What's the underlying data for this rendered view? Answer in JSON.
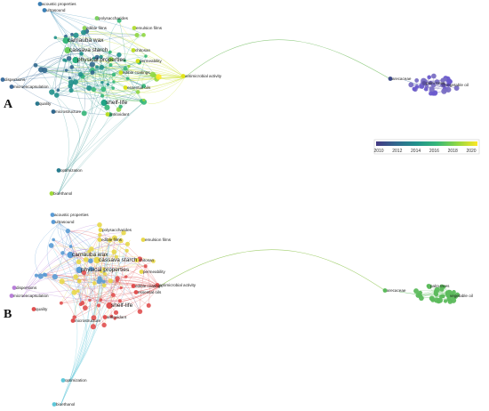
{
  "panels": [
    {
      "letter": "A",
      "mode": "year",
      "terms": [
        {
          "label": "acoustic properties",
          "big": false,
          "color": "#3b7fb5"
        },
        {
          "label": "ultrasound",
          "big": false,
          "color": "#3b7fb5"
        },
        {
          "label": "polysaccharides",
          "big": false,
          "color": "#7fd063"
        },
        {
          "label": "edible films",
          "big": false,
          "color": "#8fd45a"
        },
        {
          "label": "emulsion films",
          "big": false,
          "color": "#b5dd3b"
        },
        {
          "label": "carnauba wax",
          "big": true,
          "color": "#35b779"
        },
        {
          "label": "cassava starch",
          "big": true,
          "color": "#6ccd5a"
        },
        {
          "label": "chitosan",
          "big": false,
          "color": "#bedf26"
        },
        {
          "label": "physical properties",
          "big": true,
          "color": "#29af7f"
        },
        {
          "label": "permeability",
          "big": false,
          "color": "#d3e21b"
        },
        {
          "label": "edible coatings",
          "big": false,
          "color": "#c8e020"
        },
        {
          "label": "antimicrobial activity",
          "big": false,
          "color": "#e2e418"
        },
        {
          "label": "dispersions",
          "big": false,
          "color": "#3d6f9e"
        },
        {
          "label": "microencapsulation",
          "big": false,
          "color": "#3e6b9a"
        },
        {
          "label": "essential oils",
          "big": false,
          "color": "#dde318"
        },
        {
          "label": "shelf-life",
          "big": true,
          "color": "#20a486"
        },
        {
          "label": "quality",
          "big": false,
          "color": "#2a788e"
        },
        {
          "label": "antioxidant",
          "big": false,
          "color": "#b8de29"
        },
        {
          "label": "microstructure",
          "big": false,
          "color": "#31688e"
        },
        {
          "label": "optimization",
          "big": false,
          "color": "#287c8e"
        },
        {
          "label": "bioethanol",
          "big": false,
          "color": "#a0da39"
        },
        {
          "label": "arecaceae",
          "big": false,
          "color": "#3e4a89"
        },
        {
          "label": "palm trees",
          "big": false,
          "color": "#5a4fa0"
        },
        {
          "label": "vegetable oil",
          "big": false,
          "color": "#5b4da0"
        }
      ],
      "legend": {
        "ticks": [
          "2010",
          "2012",
          "2014",
          "2016",
          "2018",
          "2020"
        ],
        "colors": [
          "#443983",
          "#31688e",
          "#21918c",
          "#35b779",
          "#90d743",
          "#fde725"
        ]
      }
    },
    {
      "letter": "B",
      "mode": "cluster",
      "terms": [
        {
          "label": "acoustic properties",
          "big": false,
          "color": "#5a9bd5"
        },
        {
          "label": "ultrasound",
          "big": false,
          "color": "#5a9bd5"
        },
        {
          "label": "polysaccharides",
          "big": false,
          "color": "#e8d84a"
        },
        {
          "label": "edible films",
          "big": false,
          "color": "#e8d84a"
        },
        {
          "label": "emulsion films",
          "big": false,
          "color": "#e8d84a"
        },
        {
          "label": "carnauba wax",
          "big": true,
          "color": "#5a9bd5"
        },
        {
          "label": "cassava starch",
          "big": true,
          "color": "#e8d84a"
        },
        {
          "label": "chitosan",
          "big": false,
          "color": "#e8d84a"
        },
        {
          "label": "physical properties",
          "big": true,
          "color": "#5a9bd5"
        },
        {
          "label": "permeability",
          "big": false,
          "color": "#e8d84a"
        },
        {
          "label": "edible coatings",
          "big": false,
          "color": "#e05050"
        },
        {
          "label": "antimicrobial activity",
          "big": false,
          "color": "#e05050"
        },
        {
          "label": "dispersions",
          "big": false,
          "color": "#b87fd8"
        },
        {
          "label": "microencapsulation",
          "big": false,
          "color": "#b87fd8"
        },
        {
          "label": "essential oils",
          "big": false,
          "color": "#e05050"
        },
        {
          "label": "shelf-life",
          "big": true,
          "color": "#e05050"
        },
        {
          "label": "quality",
          "big": false,
          "color": "#e05050"
        },
        {
          "label": "antioxidant",
          "big": false,
          "color": "#e05050"
        },
        {
          "label": "microstructure",
          "big": false,
          "color": "#e05050"
        },
        {
          "label": "optimization",
          "big": false,
          "color": "#5fc7d9"
        },
        {
          "label": "bioethanol",
          "big": false,
          "color": "#5fc7d9"
        },
        {
          "label": "arecaceae",
          "big": false,
          "color": "#5cbb5c"
        },
        {
          "label": "palm trees",
          "big": false,
          "color": "#5cbb5c"
        },
        {
          "label": "vegetable oil",
          "big": false,
          "color": "#5cbb5c"
        }
      ]
    }
  ]
}
